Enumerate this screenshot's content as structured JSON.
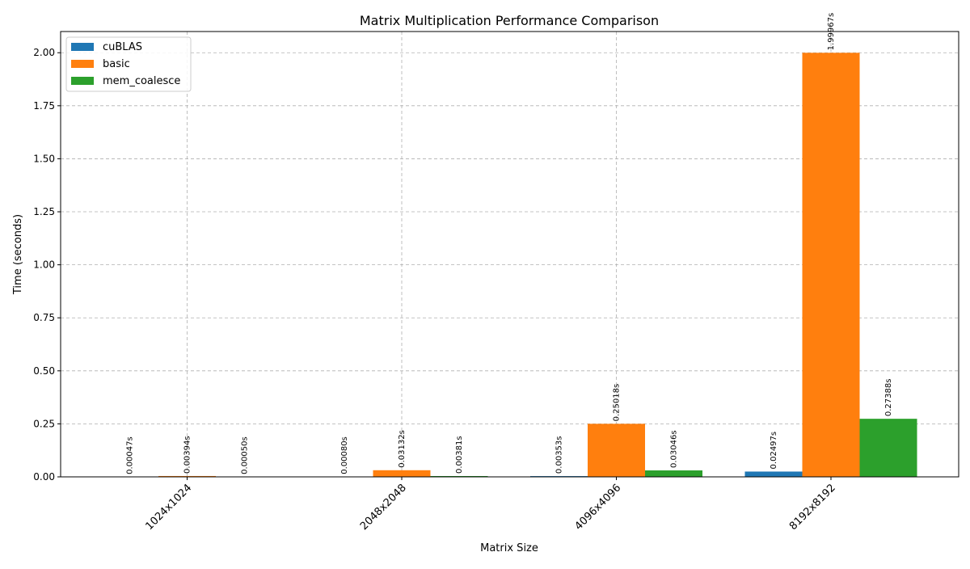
{
  "chart_data": {
    "type": "bar",
    "title": "Matrix Multiplication Performance Comparison",
    "xlabel": "Matrix Size",
    "ylabel": "Time (seconds)",
    "categories": [
      "1024x1024",
      "2048x2048",
      "4096x4096",
      "8192x8192"
    ],
    "series": [
      {
        "name": "cuBLAS",
        "color": "#1f77b4",
        "values": [
          0.00047,
          0.0008,
          0.00353,
          0.02497
        ],
        "labels": [
          "0.00047s",
          "0.00080s",
          "0.00353s",
          "0.02497s"
        ]
      },
      {
        "name": "basic",
        "color": "#ff7f0e",
        "values": [
          0.00394,
          0.03132,
          0.25018,
          1.99967
        ],
        "labels": [
          "0.00394s",
          "0.03132s",
          "0.25018s",
          "1.99967s"
        ]
      },
      {
        "name": "mem_coalesce",
        "color": "#2ca02c",
        "values": [
          0.0005,
          0.00381,
          0.03046,
          0.27388
        ],
        "labels": [
          "0.00050s",
          "0.00381s",
          "0.03046s",
          "0.27388s"
        ]
      }
    ],
    "ylim": [
      0,
      2.1
    ],
    "yticks": [
      "0.00",
      "0.25",
      "0.50",
      "0.75",
      "1.00",
      "1.25",
      "1.50",
      "1.75",
      "2.00"
    ],
    "grid": true,
    "legend_position": "top-left"
  }
}
